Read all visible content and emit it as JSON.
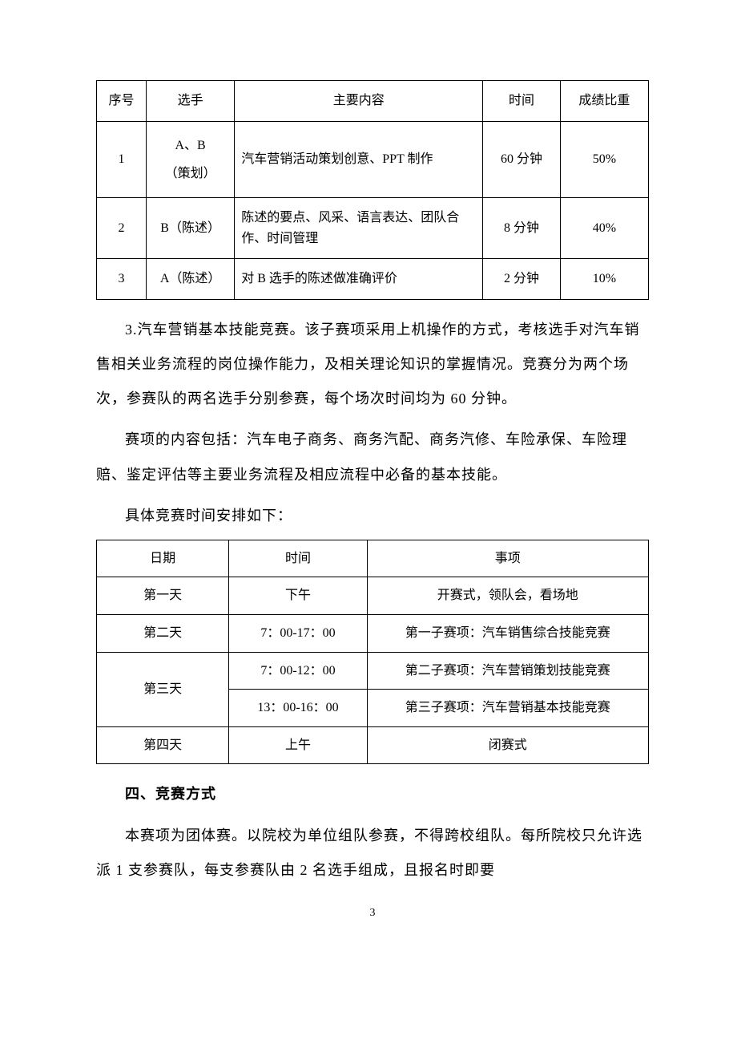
{
  "table1": {
    "columns": [
      "序号",
      "选手",
      "主要内容",
      "时间",
      "成绩比重"
    ],
    "rows": [
      [
        "1",
        "A、B\n（策划）",
        "汽车营销活动策划创意、PPT 制作",
        "60 分钟",
        "50%"
      ],
      [
        "2",
        "B（陈述）",
        "陈述的要点、风采、语言表达、团队合作、时间管理",
        "8 分钟",
        "40%"
      ],
      [
        "3",
        "A（陈述）",
        "对 B 选手的陈述做准确评价",
        "2 分钟",
        "10%"
      ]
    ]
  },
  "para1": "3.汽车营销基本技能竞赛。该子赛项采用上机操作的方式，考核选手对汽车销售相关业务流程的岗位操作能力，及相关理论知识的掌握情况。竞赛分为两个场次，参赛队的两名选手分别参赛，每个场次时间均为 60 分钟。",
  "para2": "赛项的内容包括：汽车电子商务、商务汽配、商务汽修、车险承保、车险理赔、鉴定评估等主要业务流程及相应流程中必备的基本技能。",
  "para3": "具体竞赛时间安排如下：",
  "table2": {
    "columns": [
      "日期",
      "时间",
      "事项"
    ],
    "rows": [
      {
        "day": "第一天",
        "time": "下午",
        "item": "开赛式，领队会，看场地"
      },
      {
        "day": "第二天",
        "time": "7：00-17：00",
        "item": "第一子赛项：汽车销售综合技能竞赛"
      },
      {
        "day": "第三天",
        "time": "7：00-12：00",
        "item": "第二子赛项：汽车营销策划技能竞赛",
        "rowspan": 2
      },
      {
        "day": "",
        "time": "13：00-16：00",
        "item": "第三子赛项：汽车营销基本技能竞赛"
      },
      {
        "day": "第四天",
        "time": "上午",
        "item": "闭赛式"
      }
    ]
  },
  "heading4": "四、竞赛方式",
  "para4": "本赛项为团体赛。以院校为单位组队参赛，不得跨校组队。每所院校只允许选派 1 支参赛队，每支参赛队由 2 名选手组成，且报名时即要",
  "page_number": "3"
}
